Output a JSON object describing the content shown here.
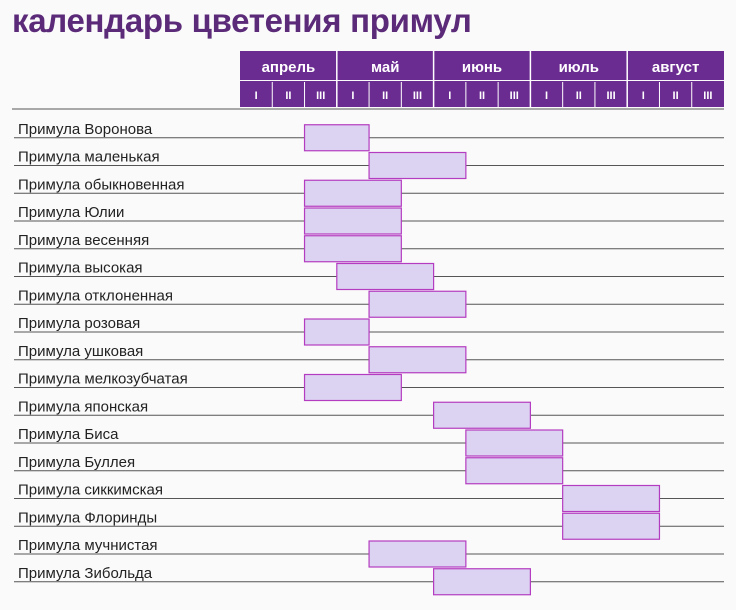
{
  "chart_data": {
    "type": "gantt",
    "title": "календарь цветения примул",
    "months": [
      "апрель",
      "май",
      "июнь",
      "июль",
      "август"
    ],
    "decades": [
      "I",
      "II",
      "III"
    ],
    "timeline_unit": "decade index (0 = апрель I … 14 = август III)",
    "colors": {
      "header": "#6b2c91",
      "header_text": "#ffffff",
      "bar_fill": "#dcd3f2",
      "bar_stroke": "#b43cc0",
      "title": "#5b2a78",
      "row_line": "#555555",
      "label": "#222222"
    },
    "rows": [
      {
        "label": "Примула Воронова",
        "start": 2,
        "end": 4
      },
      {
        "label": "Примула маленькая",
        "start": 4,
        "end": 7
      },
      {
        "label": "Примула обыкновенная",
        "start": 2,
        "end": 5
      },
      {
        "label": "Примула Юлии",
        "start": 2,
        "end": 5
      },
      {
        "label": "Примула весенняя",
        "start": 2,
        "end": 5
      },
      {
        "label": "Примула высокая",
        "start": 3,
        "end": 6
      },
      {
        "label": "Примула отклоненная",
        "start": 4,
        "end": 7
      },
      {
        "label": "Примула розовая",
        "start": 2,
        "end": 4
      },
      {
        "label": "Примула ушковая",
        "start": 4,
        "end": 7
      },
      {
        "label": "Примула мелкозубчатая",
        "start": 2,
        "end": 5
      },
      {
        "label": "Примула японская",
        "start": 6,
        "end": 9
      },
      {
        "label": "Примула Биса",
        "start": 7,
        "end": 10
      },
      {
        "label": "Примула Буллея",
        "start": 7,
        "end": 10
      },
      {
        "label": "Примула сиккимская",
        "start": 10,
        "end": 13
      },
      {
        "label": "Примула Флоринды",
        "start": 10,
        "end": 13
      },
      {
        "label": "Примула мучнистая",
        "start": 4,
        "end": 7
      },
      {
        "label": "Примула Зибольда",
        "start": 6,
        "end": 9
      }
    ]
  }
}
